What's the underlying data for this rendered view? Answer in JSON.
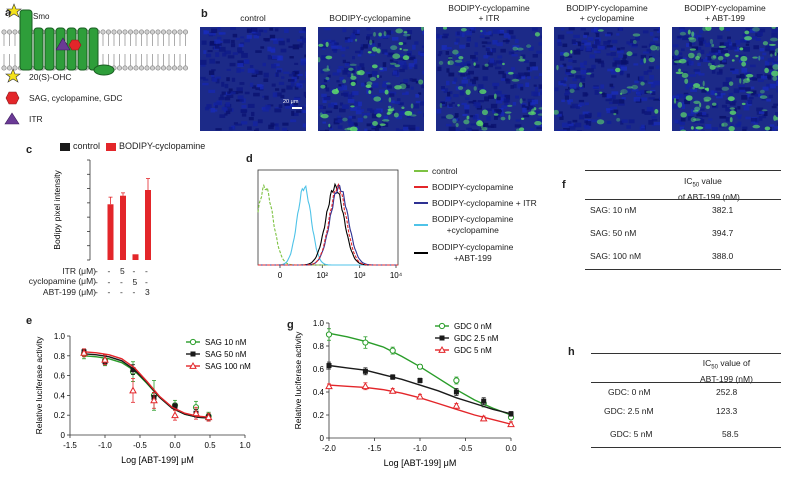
{
  "panels": {
    "a": {
      "label": "a",
      "smo": "Smo",
      "legend": [
        {
          "icon": "star-icon",
          "text": "20(S)-OHC",
          "color": "#f4e21c"
        },
        {
          "icon": "hexagon-icon",
          "text": "SAG, cyclopamine, GDC",
          "color": "#e3262a"
        },
        {
          "icon": "triangle-icon",
          "text": "ITR",
          "color": "#6b3a96"
        }
      ]
    },
    "b": {
      "label": "b",
      "scale_bar": "20 μm",
      "titles": [
        "control",
        "BODIPY-cyclopamine",
        "BODIPY-cyclopamine\n+ ITR",
        "BODIPY-cyclopamine\n+ cyclopamine",
        "BODIPY-cyclopamine\n+ ABT-199"
      ]
    },
    "c": {
      "label": "c",
      "legend": [
        {
          "text": "control",
          "color": "#1a1a1a"
        },
        {
          "text": "BODIPY-cyclopamine",
          "color": "#e3262a"
        }
      ],
      "ylabel": "Bodipy pixel intensity",
      "rows": [
        {
          "label": "ITR (μM)",
          "values": [
            "-",
            "-",
            "5",
            "-",
            "-"
          ]
        },
        {
          "label": "cyclopamine (μM)",
          "values": [
            "-",
            "-",
            "-",
            "5",
            "-"
          ]
        },
        {
          "label": "ABT-199 (μM)",
          "values": [
            "-",
            "-",
            "-",
            "-",
            "3"
          ]
        }
      ]
    },
    "d": {
      "label": "d",
      "xticks": [
        "0",
        "10²",
        "10³",
        "10⁴"
      ],
      "legend": [
        {
          "text": "control",
          "color": "#7dc242"
        },
        {
          "text": "BODIPY-cyclopamine",
          "color": "#e3262a"
        },
        {
          "text": "BODIPY-cyclopamine + ITR",
          "color": "#2e3192"
        },
        {
          "text": "BODIPY-cyclopamine\n+cyclopamine",
          "color": "#4fc3e8"
        },
        {
          "text": "BODIPY-cyclopamine\n+ABT-199",
          "color": "#000000"
        }
      ]
    },
    "e": {
      "label": "e",
      "xlabel": "Log [ABT-199] μM",
      "ylabel": "Relative luciferase activity"
    },
    "f": {
      "label": "f",
      "header_line1": "IC50 value",
      "header_line2": "of ABT-199 (nM)",
      "rows": [
        {
          "cond": "SAG: 10 nM",
          "val": "382.1"
        },
        {
          "cond": "SAG: 50 nM",
          "val": "394.7"
        },
        {
          "cond": "SAG: 100 nM",
          "val": "388.0"
        }
      ]
    },
    "g": {
      "label": "g",
      "xlabel": "Log [ABT-199] μM",
      "ylabel": "Relative luciferase activity"
    },
    "h": {
      "label": "h",
      "header_line1": "IC50 value of",
      "header_line2": "ABT-199 (nM)",
      "rows": [
        {
          "cond": "GDC: 0 nM",
          "val": "252.8"
        },
        {
          "cond": "GDC: 2.5 nM",
          "val": "123.3"
        },
        {
          "cond": "GDC:  5  nM",
          "val": "58.5"
        }
      ]
    }
  },
  "chart_data": [
    {
      "panel": "c",
      "type": "bar",
      "categories": [
        "1",
        "2",
        "3",
        "4",
        "5"
      ],
      "series": [
        {
          "name": "BODIPY-cyclopamine",
          "values": [
            0,
            39,
            45,
            4,
            49
          ],
          "errors": [
            0,
            5,
            2,
            0,
            8
          ]
        }
      ],
      "ylabel": "Bodipy pixel intensity",
      "ylim": [
        0,
        70
      ]
    },
    {
      "panel": "e",
      "type": "line",
      "xlabel": "Log [ABT-199] μM",
      "ylabel": "Relative luciferase activity",
      "xlim": [
        -1.5,
        1.0
      ],
      "ylim": [
        0,
        1.0
      ],
      "xticks": [
        -1.5,
        -1.0,
        -0.5,
        0.0,
        0.5,
        1.0
      ],
      "yticks": [
        0,
        0.2,
        0.4,
        0.6,
        0.8,
        1.0
      ],
      "series": [
        {
          "name": "SAG 10 nM",
          "color": "#2a9d2a",
          "marker": "circle",
          "x": [
            -1.3,
            -1.0,
            -0.6,
            -0.3,
            0.0,
            0.3,
            0.48
          ],
          "y": [
            0.82,
            0.75,
            0.64,
            0.4,
            0.3,
            0.28,
            0.19
          ],
          "err": [
            0.05,
            0.05,
            0.1,
            0.15,
            0.05,
            0.06,
            0.04
          ],
          "fit": [
            0.8,
            0.79,
            0.77,
            0.73,
            0.65,
            0.52,
            0.38,
            0.27,
            0.21,
            0.18,
            0.17
          ]
        },
        {
          "name": "SAG  50 nM",
          "color": "#1a1a1a",
          "marker": "square",
          "x": [
            -1.3,
            -1.0,
            -0.6,
            -0.3,
            0.0,
            0.3,
            0.48
          ],
          "y": [
            0.84,
            0.74,
            0.66,
            0.38,
            0.29,
            0.22,
            0.18
          ],
          "err": [
            0.03,
            0.03,
            0.05,
            0.05,
            0.03,
            0.04,
            0.03
          ],
          "fit": [
            0.82,
            0.81,
            0.79,
            0.75,
            0.66,
            0.53,
            0.38,
            0.27,
            0.21,
            0.18,
            0.17
          ]
        },
        {
          "name": "SAG 100 nM",
          "color": "#e3262a",
          "marker": "triangle",
          "x": [
            -1.3,
            -1.0,
            -0.6,
            -0.3,
            0.0,
            0.3,
            0.48
          ],
          "y": [
            0.83,
            0.76,
            0.45,
            0.35,
            0.2,
            0.22,
            0.18
          ],
          "err": [
            0.04,
            0.05,
            0.12,
            0.08,
            0.05,
            0.06,
            0.04
          ],
          "fit": [
            0.84,
            0.83,
            0.81,
            0.77,
            0.68,
            0.54,
            0.39,
            0.28,
            0.22,
            0.19,
            0.18
          ]
        }
      ],
      "fit_x": [
        -1.3,
        -1.12,
        -0.94,
        -0.76,
        -0.58,
        -0.4,
        -0.22,
        -0.04,
        0.14,
        0.32,
        0.5
      ]
    },
    {
      "panel": "g",
      "type": "line",
      "xlabel": "Log [ABT-199] μM",
      "ylabel": "Relative luciferase activity",
      "xlim": [
        -2.0,
        0.0
      ],
      "ylim": [
        0,
        1.0
      ],
      "xticks": [
        -2.0,
        -1.5,
        -1.0,
        -0.5,
        0.0
      ],
      "yticks": [
        0,
        0.2,
        0.4,
        0.6,
        0.8,
        1.0
      ],
      "series": [
        {
          "name": "GDC 0 nM",
          "color": "#2a9d2a",
          "marker": "circle",
          "x": [
            -2.0,
            -1.6,
            -1.3,
            -1.0,
            -0.6,
            -0.3,
            0.0
          ],
          "y": [
            0.9,
            0.83,
            0.76,
            0.62,
            0.5,
            0.3,
            0.18
          ],
          "err": [
            0.05,
            0.05,
            0.03,
            0.02,
            0.03,
            0.03,
            0.02
          ],
          "fit": [
            0.91,
            0.88,
            0.84,
            0.79,
            0.71,
            0.62,
            0.52,
            0.42,
            0.33,
            0.26,
            0.2
          ]
        },
        {
          "name": "GDC  2.5 nM",
          "color": "#1a1a1a",
          "marker": "square",
          "x": [
            -2.0,
            -1.6,
            -1.3,
            -1.0,
            -0.6,
            -0.3,
            0.0
          ],
          "y": [
            0.63,
            0.58,
            0.53,
            0.5,
            0.4,
            0.32,
            0.21
          ],
          "err": [
            0.03,
            0.03,
            0.02,
            0.02,
            0.03,
            0.03,
            0.02
          ],
          "fit": [
            0.63,
            0.61,
            0.59,
            0.55,
            0.51,
            0.46,
            0.41,
            0.35,
            0.3,
            0.25,
            0.21
          ]
        },
        {
          "name": "GDC 5 nM",
          "color": "#e3262a",
          "marker": "triangle",
          "x": [
            -2.0,
            -1.6,
            -1.3,
            -1.0,
            -0.6,
            -0.3,
            0.0
          ],
          "y": [
            0.45,
            0.45,
            0.41,
            0.36,
            0.28,
            0.17,
            0.12
          ],
          "err": [
            0.02,
            0.03,
            0.02,
            0.02,
            0.02,
            0.02,
            0.02
          ],
          "fit": [
            0.46,
            0.45,
            0.44,
            0.42,
            0.39,
            0.35,
            0.3,
            0.25,
            0.2,
            0.16,
            0.12
          ]
        }
      ],
      "fit_x": [
        -2.0,
        -1.8,
        -1.6,
        -1.4,
        -1.2,
        -1.0,
        -0.8,
        -0.6,
        -0.4,
        -0.2,
        0.0
      ]
    },
    {
      "panel": "d",
      "type": "line",
      "xticks": [
        "0",
        "10²",
        "10³",
        "10⁴"
      ],
      "series": [
        {
          "name": "control",
          "color": "#7dc242",
          "peak": 0.05,
          "width": 0.08,
          "dashed": true
        },
        {
          "name": "BODIPY-cyclopamine + cyclopamine",
          "color": "#4fc3e8",
          "peak": 0.33,
          "width": 0.07,
          "dashed": false
        },
        {
          "name": "BODIPY-cyclopamine + ABT-199",
          "color": "#000000",
          "peak": 0.55,
          "width": 0.09,
          "dashed": false
        },
        {
          "name": "BODIPY-cyclopamine + ITR",
          "color": "#2e3192",
          "peak": 0.58,
          "width": 0.09,
          "dashed": false
        },
        {
          "name": "BODIPY-cyclopamine",
          "color": "#e3262a",
          "peak": 0.57,
          "width": 0.085,
          "dashed": true
        }
      ]
    }
  ]
}
